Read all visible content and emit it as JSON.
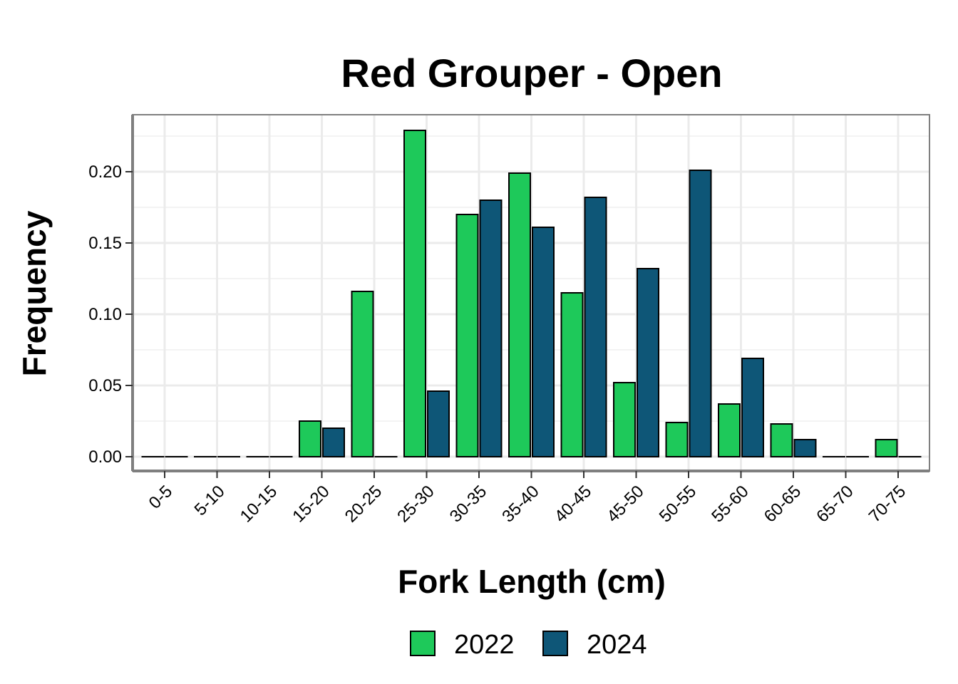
{
  "chart_data": {
    "type": "bar",
    "title": "Red Grouper - Open",
    "xlabel": "Fork Length (cm)",
    "ylabel": "Frequency",
    "categories": [
      "0-5",
      "5-10",
      "10-15",
      "15-20",
      "20-25",
      "25-30",
      "30-35",
      "35-40",
      "40-45",
      "45-50",
      "50-55",
      "55-60",
      "60-65",
      "65-70",
      "70-75"
    ],
    "series": [
      {
        "name": "2022",
        "color": "#1ec95a",
        "values": [
          0,
          0,
          0,
          0.025,
          0.116,
          0.229,
          0.17,
          0.199,
          0.115,
          0.052,
          0.024,
          0.037,
          0.023,
          0,
          0.012
        ]
      },
      {
        "name": "2024",
        "color": "#0e5677",
        "values": [
          0,
          0,
          0,
          0.02,
          0,
          0.046,
          0.18,
          0.161,
          0.182,
          0.132,
          0.201,
          0.069,
          0.012,
          0,
          0
        ]
      }
    ],
    "yticks": [
      "0.00",
      "0.05",
      "0.10",
      "0.15",
      "0.20"
    ],
    "ylim": [
      -0.011,
      0.24
    ],
    "grid": true,
    "legend_position": "bottom"
  }
}
